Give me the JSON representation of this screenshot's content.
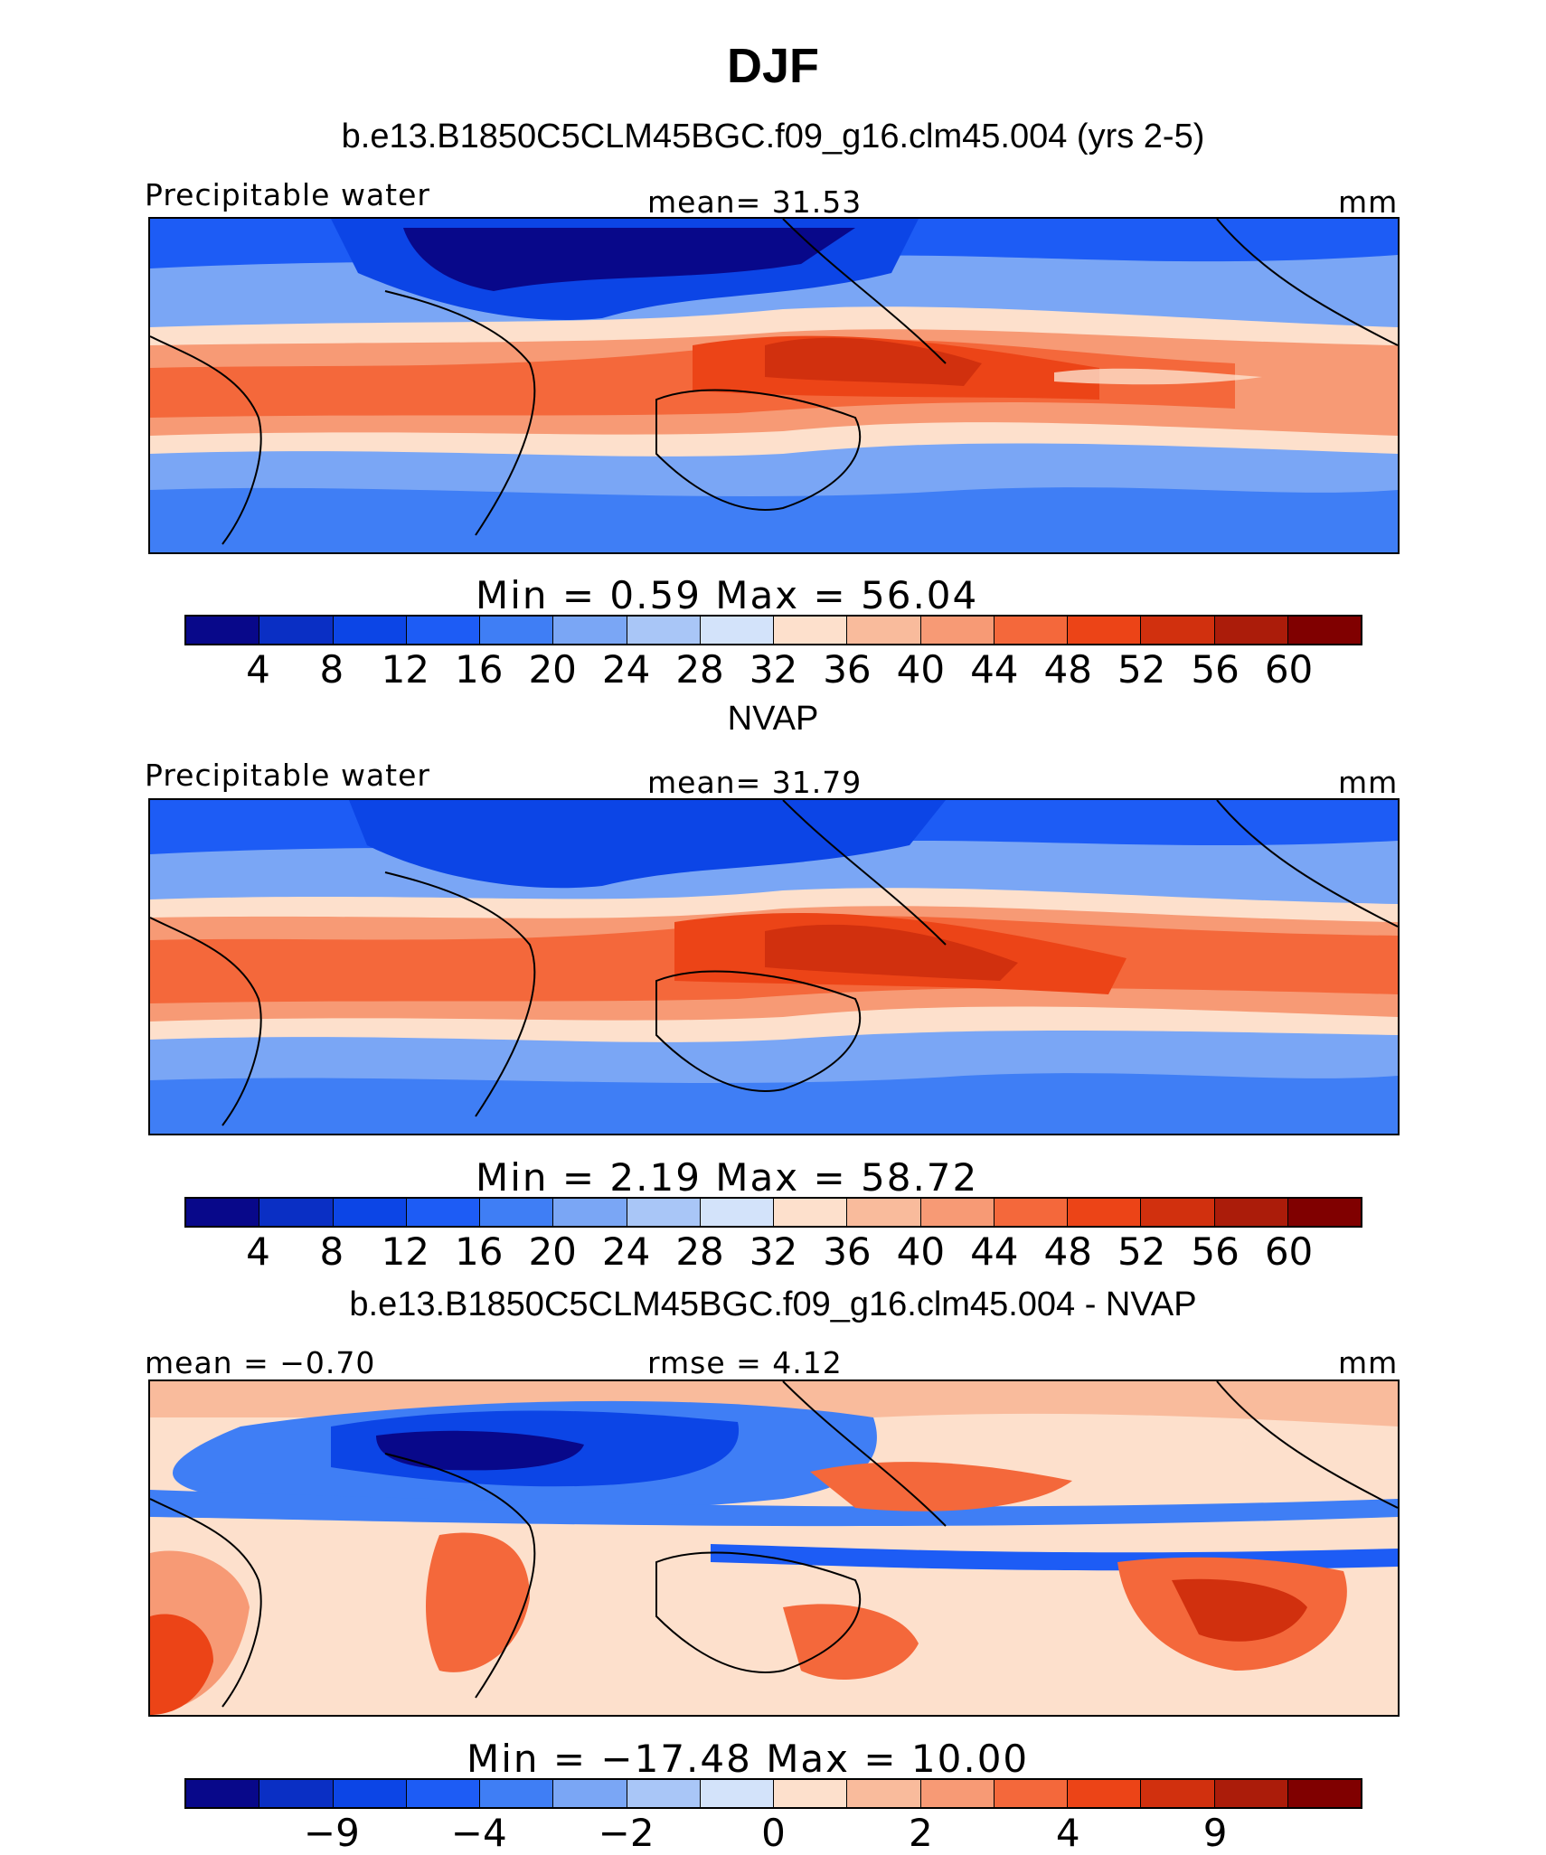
{
  "title": "DJF",
  "colors": [
    "#08088a",
    "#0a2fc4",
    "#0c45e6",
    "#1d5cf5",
    "#3f7ef5",
    "#7aa6f5",
    "#a9c6f7",
    "#d3e3fa",
    "#fde0cc",
    "#f9bb9c",
    "#f79a75",
    "#f4683b",
    "#ec4417",
    "#d1300e",
    "#ab1c0a",
    "#800000"
  ],
  "coastline_color": "#000000",
  "panels": [
    {
      "subtitle": "b.e13.B1850C5CLM45BGC.f09_g16.clm45.004 (yrs 2-5)",
      "left_label": "Precipitable water",
      "center_label": "mean=   31.53",
      "units": "mm",
      "stats": "Min  =     0.59  Max  =    56.04",
      "ticks": [
        "4",
        "8",
        "12",
        "16",
        "20",
        "24",
        "28",
        "32",
        "36",
        "40",
        "44",
        "48",
        "52",
        "56",
        "60"
      ]
    },
    {
      "subtitle": "NVAP",
      "left_label": "Precipitable water",
      "center_label": "mean=   31.79",
      "units": "mm",
      "stats": "Min  =     2.19  Max  =    58.72",
      "ticks": [
        "4",
        "8",
        "12",
        "16",
        "20",
        "24",
        "28",
        "32",
        "36",
        "40",
        "44",
        "48",
        "52",
        "56",
        "60"
      ]
    },
    {
      "subtitle": "b.e13.B1850C5CLM45BGC.f09_g16.clm45.004 - NVAP",
      "left_label": "mean  =   −0.70",
      "center_label": "rmse  =     4.12",
      "units": "mm",
      "stats": "Min  =  −17.48  Max  =    10.00",
      "ticks": [
        "−9",
        "−4",
        "−2",
        "0",
        "2",
        "4",
        "9"
      ]
    }
  ]
}
